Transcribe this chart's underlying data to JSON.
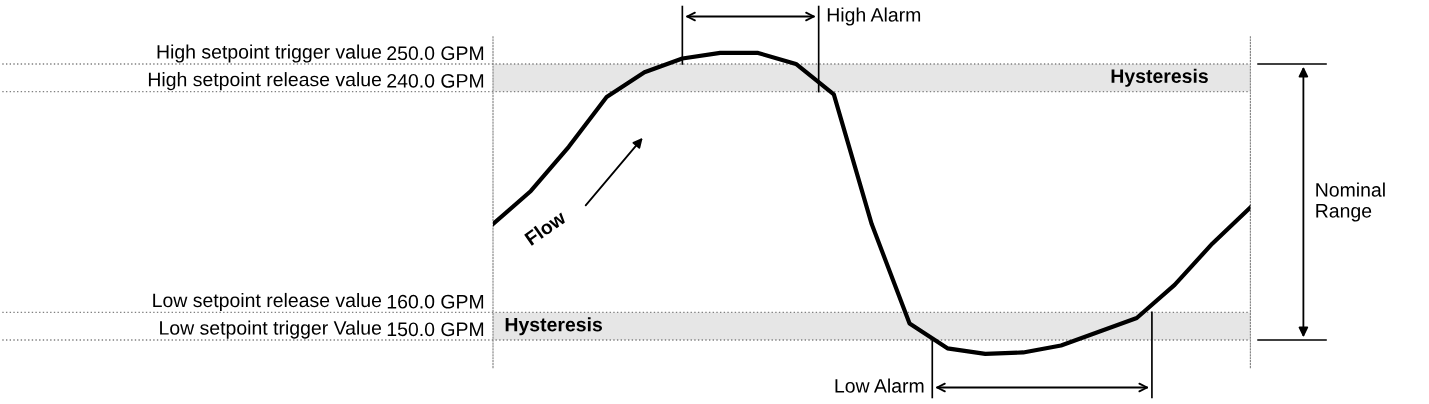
{
  "chart_data": {
    "type": "line",
    "categories": [
      null,
      null,
      null,
      null,
      null,
      null,
      null,
      null,
      null,
      null,
      null,
      null,
      null,
      null,
      null,
      null,
      null,
      null,
      null,
      null,
      null
    ],
    "series": [
      {
        "color": "#000000",
        "values": [
          192,
          204,
          220,
          238,
          247,
          252,
          254,
          254,
          250,
          239,
          192,
          156,
          147,
          145,
          145.5,
          148,
          153,
          158,
          170,
          185,
          198
        ]
      }
    ],
    "ylim": [
      140,
      260
    ],
    "yticks": [
      {
        "value": 150,
        "label": "150.0 GPM"
      },
      {
        "value": 160,
        "label": "160.0 GPM"
      },
      {
        "value": 240,
        "label": "240.0 GPM"
      },
      {
        "value": 250,
        "label": "250.0 GPM"
      }
    ],
    "ref_lines": [
      {
        "axis": "y",
        "value": 150,
        "label": "Low setpoint trigger Value",
        "color": "#808080",
        "line_style": "dotted"
      },
      {
        "axis": "y",
        "value": 160,
        "label": "Low setpoint release value",
        "color": "#808080",
        "line_style": "dotted"
      },
      {
        "axis": "y",
        "value": 240,
        "label": "High setpoint release value",
        "color": "#808080",
        "line_style": "dotted"
      },
      {
        "axis": "y",
        "value": 250,
        "label": "High setpoint trigger value",
        "color": "#808080",
        "line_style": "dotted"
      }
    ],
    "bands": [
      {
        "axis": "y",
        "from": 240,
        "to": 250,
        "label": "Hysteresis",
        "color": "#e6e6e6"
      },
      {
        "axis": "y",
        "from": 150,
        "to": 160,
        "label": "Hysteresis",
        "color": "#e6e6e6"
      }
    ],
    "annotations": [
      "High Alarm",
      "Low Alarm",
      "Flow",
      "Nominal Range"
    ],
    "grid": false,
    "legend": false,
    "marker": "none",
    "line_style": "solid"
  }
}
